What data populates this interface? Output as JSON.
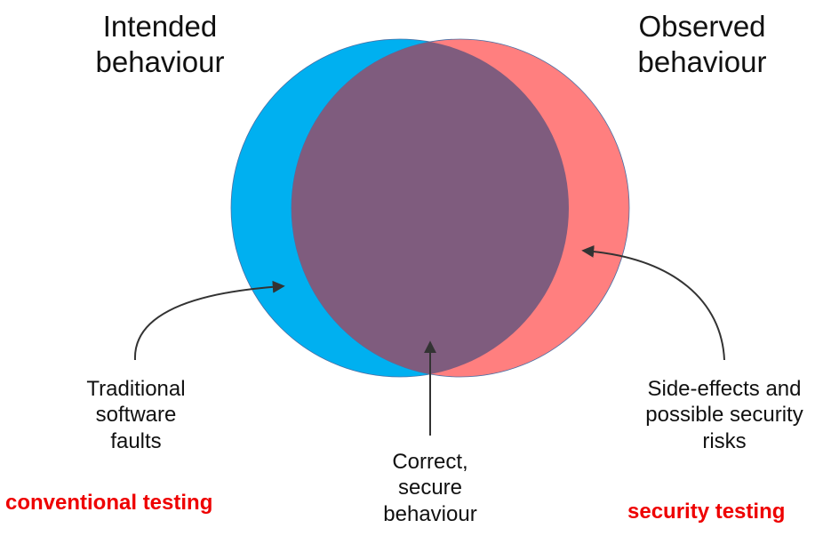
{
  "headings": {
    "intended": "Intended\nbehaviour",
    "observed": "Observed\nbehaviour"
  },
  "callouts": {
    "traditional_faults": "Traditional\nsoftware\nfaults",
    "correct_secure": "Correct,\nsecure\nbehaviour",
    "side_effects": "Side-effects and\npossible security\nrisks"
  },
  "tags": {
    "conventional": "conventional testing",
    "security": "security testing"
  },
  "colors": {
    "intended_circle": "#00B0F0",
    "observed_circle": "#FF7F7F",
    "overlap": "#7F5C7E",
    "tag_text": "#EE0000",
    "arrow": "#333333"
  }
}
